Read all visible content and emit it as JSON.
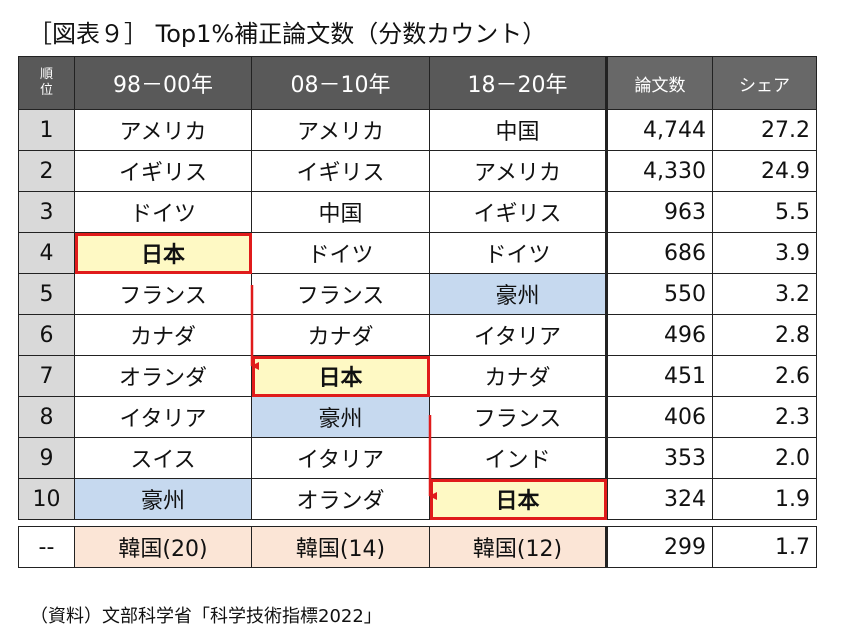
{
  "title": "［図表９］ Top1%補正論文数（分数カウント）",
  "source": "（資料）文部科学省「科学技術指標2022」",
  "table": {
    "headers": {
      "rank": "順\n位",
      "period1": "98－00年",
      "period2": "08－10年",
      "period3": "18－20年",
      "papers": "論文数",
      "share": "シェア"
    },
    "rows": [
      {
        "rank": "1",
        "p1": "アメリカ",
        "p2": "アメリカ",
        "p3": "中国",
        "papers": "4,744",
        "share": "27.2"
      },
      {
        "rank": "2",
        "p1": "イギリス",
        "p2": "イギリス",
        "p3": "アメリカ",
        "papers": "4,330",
        "share": "24.9"
      },
      {
        "rank": "3",
        "p1": "ドイツ",
        "p2": "中国",
        "p3": "イギリス",
        "papers": "963",
        "share": "5.5"
      },
      {
        "rank": "4",
        "p1": "日本",
        "p2": "ドイツ",
        "p3": "ドイツ",
        "papers": "686",
        "share": "3.9"
      },
      {
        "rank": "5",
        "p1": "フランス",
        "p2": "フランス",
        "p3": "豪州",
        "papers": "550",
        "share": "3.2"
      },
      {
        "rank": "6",
        "p1": "カナダ",
        "p2": "カナダ",
        "p3": "イタリア",
        "papers": "496",
        "share": "2.8"
      },
      {
        "rank": "7",
        "p1": "オランダ",
        "p2": "日本",
        "p3": "カナダ",
        "papers": "451",
        "share": "2.6"
      },
      {
        "rank": "8",
        "p1": "イタリア",
        "p2": "豪州",
        "p3": "フランス",
        "papers": "406",
        "share": "2.3"
      },
      {
        "rank": "9",
        "p1": "スイス",
        "p2": "イタリア",
        "p3": "インド",
        "papers": "353",
        "share": "2.0"
      },
      {
        "rank": "10",
        "p1": "豪州",
        "p2": "オランダ",
        "p3": "日本",
        "papers": "324",
        "share": "1.9"
      }
    ],
    "korea": {
      "rank": "--",
      "p1": "韓国(20)",
      "p2": "韓国(14)",
      "p3": "韓国(12)",
      "papers": "299",
      "share": "1.7"
    }
  },
  "colors": {
    "header_bg": "#595959",
    "rank_bg": "#d9d9d9",
    "japan_bg": "#fef9c4",
    "japan_border": "#e01b1b",
    "australia_bg": "#c6d9ef",
    "korea_bg": "#fbe5d6"
  }
}
